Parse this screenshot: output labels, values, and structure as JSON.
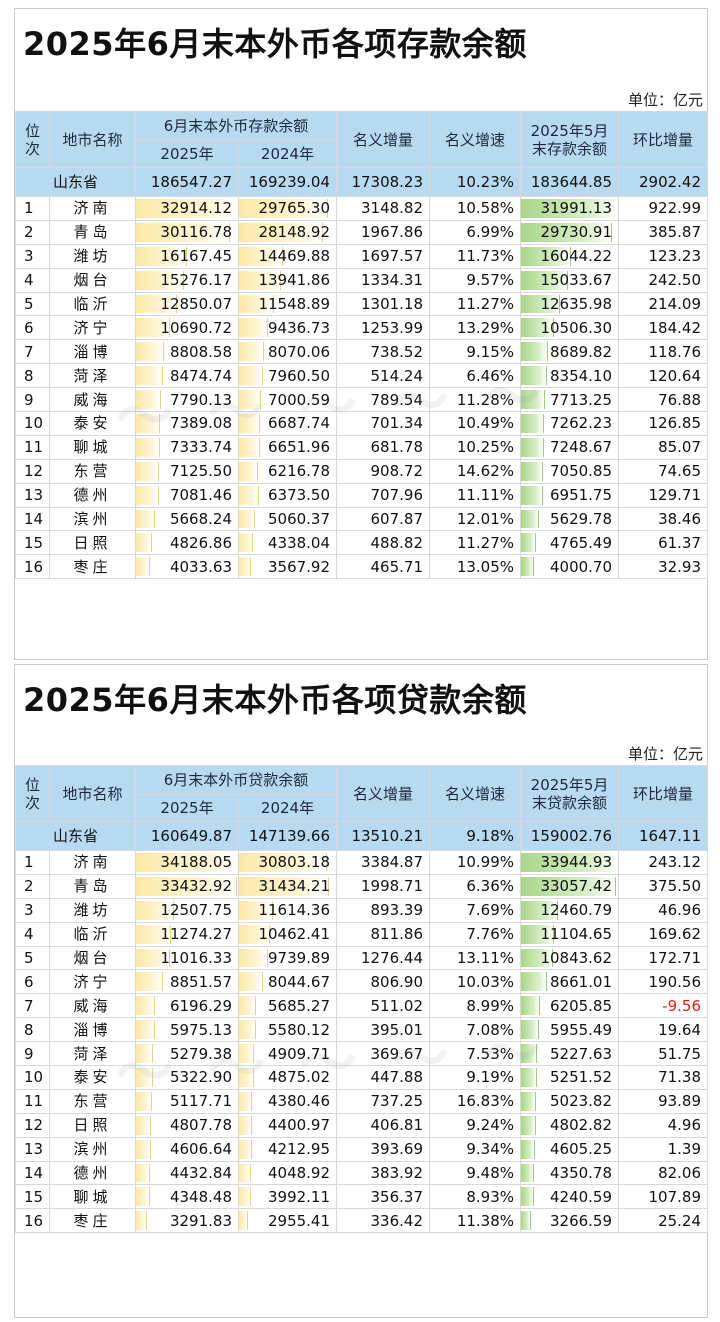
{
  "deposits": {
    "title": "2025年6月末本外币各项存款余额",
    "unit": "单位：亿元",
    "headers": {
      "rank": "位次",
      "city": "地市名称",
      "group": "6月末本外币存款余额",
      "y2025": "2025年",
      "y2024": "2024年",
      "increase": "名义增量",
      "growth": "名义增速",
      "may_line1": "2025年5月",
      "may_line2": "末存款余额",
      "mom": "环比增量"
    },
    "province": {
      "name": "山东省",
      "y2025": "186547.27",
      "y2024": "169239.04",
      "increase": "17308.23",
      "growth": "10.23%",
      "may": "183644.85",
      "mom": "2902.42"
    },
    "rows": [
      {
        "rank": "1",
        "city": "济南",
        "y2025": "32914.12",
        "y2024": "29765.30",
        "increase": "3148.82",
        "growth": "10.58%",
        "may": "31991.13",
        "mom": "922.99"
      },
      {
        "rank": "2",
        "city": "青岛",
        "y2025": "30116.78",
        "y2024": "28148.92",
        "increase": "1967.86",
        "growth": "6.99%",
        "may": "29730.91",
        "mom": "385.87"
      },
      {
        "rank": "3",
        "city": "潍坊",
        "y2025": "16167.45",
        "y2024": "14469.88",
        "increase": "1697.57",
        "growth": "11.73%",
        "may": "16044.22",
        "mom": "123.23"
      },
      {
        "rank": "4",
        "city": "烟台",
        "y2025": "15276.17",
        "y2024": "13941.86",
        "increase": "1334.31",
        "growth": "9.57%",
        "may": "15033.67",
        "mom": "242.50"
      },
      {
        "rank": "5",
        "city": "临沂",
        "y2025": "12850.07",
        "y2024": "11548.89",
        "increase": "1301.18",
        "growth": "11.27%",
        "may": "12635.98",
        "mom": "214.09"
      },
      {
        "rank": "6",
        "city": "济宁",
        "y2025": "10690.72",
        "y2024": "9436.73",
        "increase": "1253.99",
        "growth": "13.29%",
        "may": "10506.30",
        "mom": "184.42"
      },
      {
        "rank": "7",
        "city": "淄博",
        "y2025": "8808.58",
        "y2024": "8070.06",
        "increase": "738.52",
        "growth": "9.15%",
        "may": "8689.82",
        "mom": "118.76"
      },
      {
        "rank": "8",
        "city": "菏泽",
        "y2025": "8474.74",
        "y2024": "7960.50",
        "increase": "514.24",
        "growth": "6.46%",
        "may": "8354.10",
        "mom": "120.64"
      },
      {
        "rank": "9",
        "city": "威海",
        "y2025": "7790.13",
        "y2024": "7000.59",
        "increase": "789.54",
        "growth": "11.28%",
        "may": "7713.25",
        "mom": "76.88"
      },
      {
        "rank": "10",
        "city": "泰安",
        "y2025": "7389.08",
        "y2024": "6687.74",
        "increase": "701.34",
        "growth": "10.49%",
        "may": "7262.23",
        "mom": "126.85"
      },
      {
        "rank": "11",
        "city": "聊城",
        "y2025": "7333.74",
        "y2024": "6651.96",
        "increase": "681.78",
        "growth": "10.25%",
        "may": "7248.67",
        "mom": "85.07"
      },
      {
        "rank": "12",
        "city": "东营",
        "y2025": "7125.50",
        "y2024": "6216.78",
        "increase": "908.72",
        "growth": "14.62%",
        "may": "7050.85",
        "mom": "74.65"
      },
      {
        "rank": "13",
        "city": "德州",
        "y2025": "7081.46",
        "y2024": "6373.50",
        "increase": "707.96",
        "growth": "11.11%",
        "may": "6951.75",
        "mom": "129.71"
      },
      {
        "rank": "14",
        "city": "滨州",
        "y2025": "5668.24",
        "y2024": "5060.37",
        "increase": "607.87",
        "growth": "12.01%",
        "may": "5629.78",
        "mom": "38.46"
      },
      {
        "rank": "15",
        "city": "日照",
        "y2025": "4826.86",
        "y2024": "4338.04",
        "increase": "488.82",
        "growth": "11.27%",
        "may": "4765.49",
        "mom": "61.37"
      },
      {
        "rank": "16",
        "city": "枣庄",
        "y2025": "4033.63",
        "y2024": "3567.92",
        "increase": "465.71",
        "growth": "13.05%",
        "may": "4000.70",
        "mom": "32.93"
      }
    ]
  },
  "loans": {
    "title": "2025年6月末本外币各项贷款余额",
    "unit": "单位：亿元",
    "headers": {
      "rank": "位次",
      "city": "地市名称",
      "group": "6月末本外币贷款余额",
      "y2025": "2025年",
      "y2024": "2024年",
      "increase": "名义增量",
      "growth": "名义增速",
      "may_line1": "2025年5月",
      "may_line2": "末贷款余额",
      "mom": "环比增量"
    },
    "province": {
      "name": "山东省",
      "y2025": "160649.87",
      "y2024": "147139.66",
      "increase": "13510.21",
      "growth": "9.18%",
      "may": "159002.76",
      "mom": "1647.11"
    },
    "rows": [
      {
        "rank": "1",
        "city": "济南",
        "y2025": "34188.05",
        "y2024": "30803.18",
        "increase": "3384.87",
        "growth": "10.99%",
        "may": "33944.93",
        "mom": "243.12"
      },
      {
        "rank": "2",
        "city": "青岛",
        "y2025": "33432.92",
        "y2024": "31434.21",
        "increase": "1998.71",
        "growth": "6.36%",
        "may": "33057.42",
        "mom": "375.50"
      },
      {
        "rank": "3",
        "city": "潍坊",
        "y2025": "12507.75",
        "y2024": "11614.36",
        "increase": "893.39",
        "growth": "7.69%",
        "may": "12460.79",
        "mom": "46.96"
      },
      {
        "rank": "4",
        "city": "临沂",
        "y2025": "11274.27",
        "y2024": "10462.41",
        "increase": "811.86",
        "growth": "7.76%",
        "may": "11104.65",
        "mom": "169.62"
      },
      {
        "rank": "5",
        "city": "烟台",
        "y2025": "11016.33",
        "y2024": "9739.89",
        "increase": "1276.44",
        "growth": "13.11%",
        "may": "10843.62",
        "mom": "172.71"
      },
      {
        "rank": "6",
        "city": "济宁",
        "y2025": "8851.57",
        "y2024": "8044.67",
        "increase": "806.90",
        "growth": "10.03%",
        "may": "8661.01",
        "mom": "190.56"
      },
      {
        "rank": "7",
        "city": "威海",
        "y2025": "6196.29",
        "y2024": "5685.27",
        "increase": "511.02",
        "growth": "8.99%",
        "may": "6205.85",
        "mom": "-9.56"
      },
      {
        "rank": "8",
        "city": "淄博",
        "y2025": "5975.13",
        "y2024": "5580.12",
        "increase": "395.01",
        "growth": "7.08%",
        "may": "5955.49",
        "mom": "19.64"
      },
      {
        "rank": "9",
        "city": "菏泽",
        "y2025": "5279.38",
        "y2024": "4909.71",
        "increase": "369.67",
        "growth": "7.53%",
        "may": "5227.63",
        "mom": "51.75"
      },
      {
        "rank": "10",
        "city": "泰安",
        "y2025": "5322.90",
        "y2024": "4875.02",
        "increase": "447.88",
        "growth": "9.19%",
        "may": "5251.52",
        "mom": "71.38"
      },
      {
        "rank": "11",
        "city": "东营",
        "y2025": "5117.71",
        "y2024": "4380.46",
        "increase": "737.25",
        "growth": "16.83%",
        "may": "5023.82",
        "mom": "93.89"
      },
      {
        "rank": "12",
        "city": "日照",
        "y2025": "4807.78",
        "y2024": "4400.97",
        "increase": "406.81",
        "growth": "9.24%",
        "may": "4802.82",
        "mom": "4.96"
      },
      {
        "rank": "13",
        "city": "滨州",
        "y2025": "4606.64",
        "y2024": "4212.95",
        "increase": "393.69",
        "growth": "9.34%",
        "may": "4605.25",
        "mom": "1.39"
      },
      {
        "rank": "14",
        "city": "德州",
        "y2025": "4432.84",
        "y2024": "4048.92",
        "increase": "383.92",
        "growth": "9.48%",
        "may": "4350.78",
        "mom": "82.06"
      },
      {
        "rank": "15",
        "city": "聊城",
        "y2025": "4348.48",
        "y2024": "3992.11",
        "increase": "356.37",
        "growth": "8.93%",
        "may": "4240.59",
        "mom": "107.89"
      },
      {
        "rank": "16",
        "city": "枣庄",
        "y2025": "3291.83",
        "y2024": "2955.41",
        "increase": "336.42",
        "growth": "11.38%",
        "may": "3266.59",
        "mom": "25.24"
      }
    ]
  },
  "colors": {
    "header_bg": "#b8daf0",
    "bar_yellow": "#fbe8a6",
    "bar_green": "#a9d58a",
    "negative": "#d9230f"
  }
}
